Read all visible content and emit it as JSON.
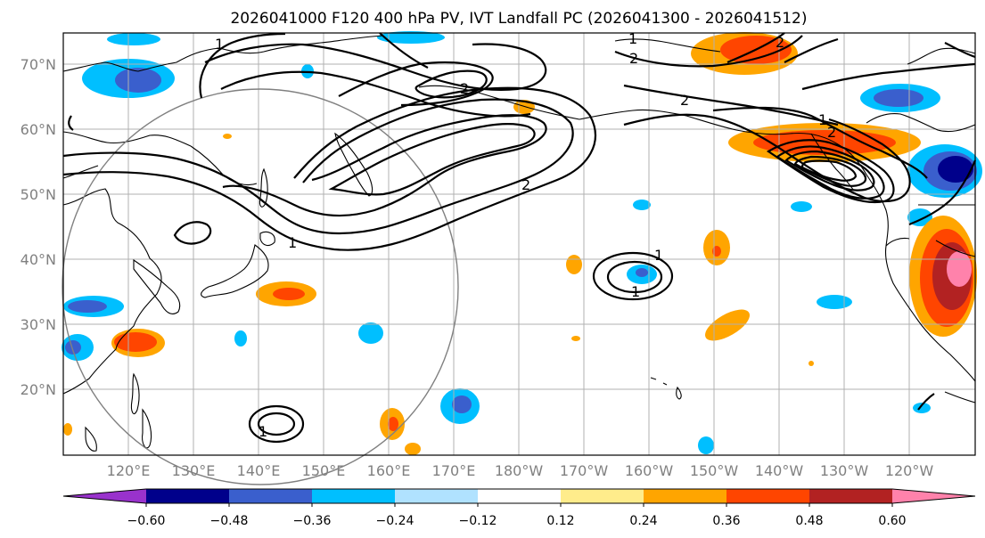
{
  "title": "2026041000 F120 400 hPa PV, IVT Landfall PC (2026041300 - 2026041512)",
  "lat_labels": [
    "70°N",
    "60°N",
    "50°N",
    "40°N",
    "30°N",
    "20°N"
  ],
  "lon_labels": [
    "120°E",
    "130°E",
    "140°E",
    "150°E",
    "160°E",
    "170°E",
    "180°W",
    "170°W",
    "160°W",
    "150°W",
    "140°W",
    "130°W",
    "120°W"
  ],
  "colorbar": {
    "ticks": [
      "−0.60",
      "−0.48",
      "−0.36",
      "−0.24",
      "−0.12",
      "0.12",
      "0.24",
      "0.36",
      "0.48",
      "0.60"
    ],
    "colors": [
      "#9932cc",
      "#00008b",
      "#3a5fcd",
      "#00bfff",
      "#b0e2ff",
      "#ffffff",
      "#ffec8b",
      "#ffa500",
      "#ff4500",
      "#b22222",
      "#ff82ab"
    ]
  },
  "contour_labels": [
    "1",
    "2",
    "2",
    "2",
    "2",
    "1",
    "1",
    "2",
    "1",
    "1",
    "1",
    "1",
    "2"
  ],
  "colors": {
    "frame": "#000000",
    "grid": "#b0b0b0",
    "label": "#808080",
    "circle": "#808080"
  }
}
